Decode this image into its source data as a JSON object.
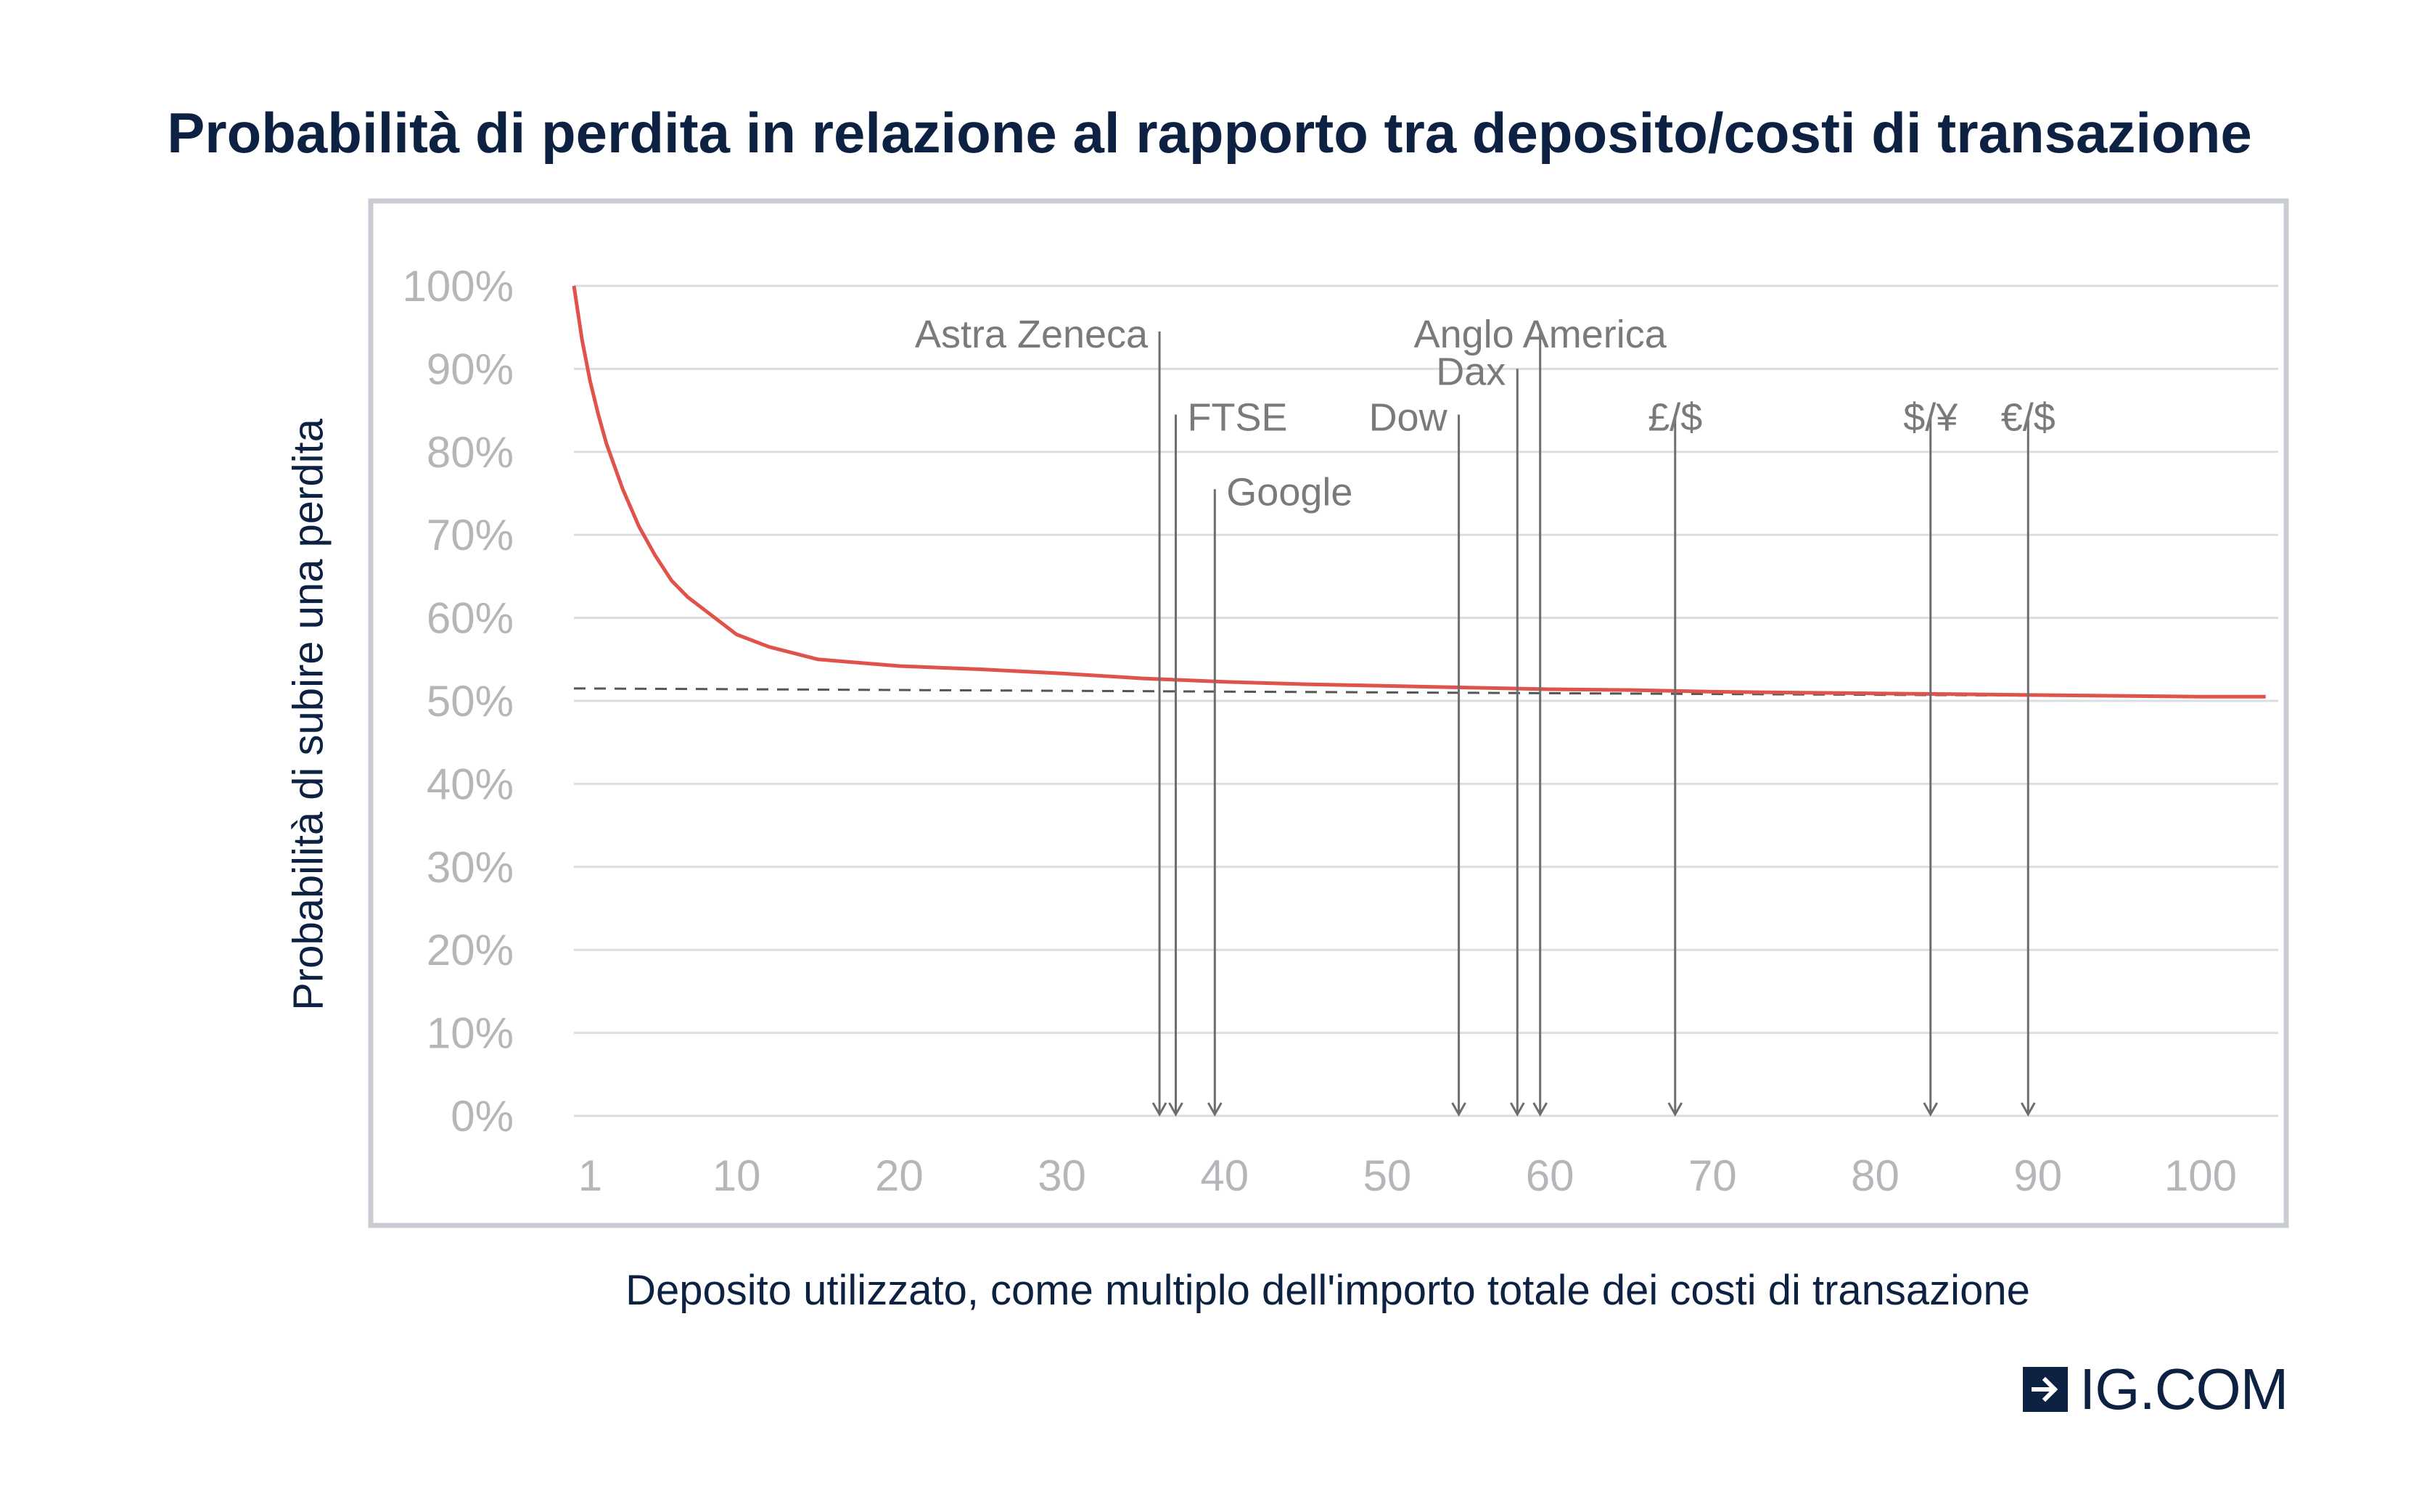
{
  "chart_data": {
    "type": "line",
    "title": "Probabilità di perdita in relazione al rapporto tra deposito/costi di transazione",
    "xlabel": "Deposito utilizzato, come multiplo dell'importo totale dei costi di transazione",
    "ylabel": "Probabilità di subire una perdita",
    "xlim": [
      0,
      105
    ],
    "ylim": [
      0,
      100
    ],
    "x_ticks": [
      {
        "value": 1,
        "label": "1"
      },
      {
        "value": 10,
        "label": "10"
      },
      {
        "value": 20,
        "label": "20"
      },
      {
        "value": 30,
        "label": "30"
      },
      {
        "value": 40,
        "label": "40"
      },
      {
        "value": 50,
        "label": "50"
      },
      {
        "value": 60,
        "label": "60"
      },
      {
        "value": 70,
        "label": "70"
      },
      {
        "value": 80,
        "label": "80"
      },
      {
        "value": 90,
        "label": "90"
      },
      {
        "value": 100,
        "label": "100"
      }
    ],
    "y_ticks": [
      {
        "value": 100,
        "label": "100%"
      },
      {
        "value": 90,
        "label": "90%"
      },
      {
        "value": 80,
        "label": "80%"
      },
      {
        "value": 70,
        "label": "70%"
      },
      {
        "value": 60,
        "label": "60%"
      },
      {
        "value": 50,
        "label": "50%"
      },
      {
        "value": 40,
        "label": "40%"
      },
      {
        "value": 30,
        "label": "30%"
      },
      {
        "value": 20,
        "label": "20%"
      },
      {
        "value": 10,
        "label": "10%"
      },
      {
        "value": 0,
        "label": "0%"
      }
    ],
    "grid": true,
    "series": [
      {
        "color": "#e0534a",
        "x": [
          0,
          0.5,
          1,
          1.5,
          2,
          3,
          4,
          5,
          6,
          7,
          8,
          10,
          12,
          15,
          20,
          25,
          30,
          35,
          40,
          45,
          50,
          55,
          60,
          65,
          70,
          75,
          80,
          85,
          90,
          95,
          100,
          104
        ],
        "y": [
          100,
          93.5,
          88.5,
          84.5,
          81,
          75.5,
          71,
          67.5,
          64.5,
          62.5,
          61,
          58,
          56.5,
          55,
          54.2,
          53.8,
          53.3,
          52.7,
          52.3,
          52,
          51.8,
          51.6,
          51.4,
          51.3,
          51.1,
          51,
          50.9,
          50.8,
          50.7,
          50.6,
          50.5,
          50.5
        ]
      }
    ],
    "reference_line": {
      "style": "dashed",
      "color": "#555555",
      "x": [
        0,
        104
      ],
      "y": [
        51.5,
        50.5
      ]
    },
    "annotations": [
      {
        "label": "Astra Zeneca",
        "x": 36,
        "y_top": 94.5,
        "align": "end"
      },
      {
        "label": "FTSE",
        "x": 37,
        "y_top": 84.5,
        "align": "start"
      },
      {
        "label": "Google",
        "x": 39.4,
        "y_top": 75.5,
        "align": "start"
      },
      {
        "label": "Dow",
        "x": 54.4,
        "y_top": 84.5,
        "align": "end"
      },
      {
        "label": "Dax",
        "x": 58,
        "y_top": 90,
        "align": "end"
      },
      {
        "label": "Anglo America",
        "x": 59.4,
        "y_top": 94.5,
        "align": "middle"
      },
      {
        "label": "£/$",
        "x": 67.7,
        "y_top": 84.5,
        "align": "middle"
      },
      {
        "label": "$/¥",
        "x": 83.4,
        "y_top": 84.5,
        "align": "middle"
      },
      {
        "label": "€/$",
        "x": 89.4,
        "y_top": 84.5,
        "align": "middle"
      }
    ],
    "colors": {
      "frame": "#c9ccd2",
      "grid": "#dcdde0",
      "tick_text": "#b4b6ba",
      "annotation_line": "#6e6e6e",
      "annotation_text": "#7a7a7a"
    }
  },
  "brand": {
    "logo_text": "IG.COM",
    "logo_icon": "arrow-right-icon",
    "color": "#0d2142"
  }
}
